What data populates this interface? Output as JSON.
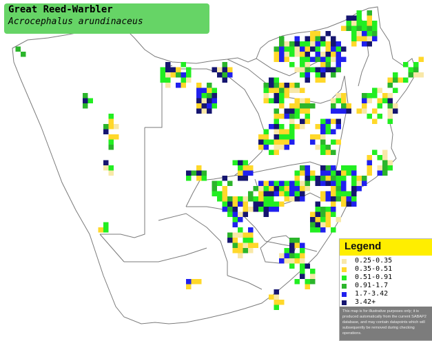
{
  "species": {
    "common_name": "Great Reed-Warbler",
    "scientific_name": "Acrocephalus arundinaceus"
  },
  "legend": {
    "title": "Legend",
    "items": [
      {
        "label": "0.25-0.35",
        "color": "#f8e8a8"
      },
      {
        "label": "0.35-0.51",
        "color": "#ffd82a"
      },
      {
        "label": "0.51-0.91",
        "color": "#22ee22"
      },
      {
        "label": "0.91-1.7",
        "color": "#2bb52b"
      },
      {
        "label": "1.7-3.42",
        "color": "#2020ee"
      },
      {
        "label": "3.42+",
        "color": "#151570"
      }
    ],
    "disclaimer": "This map is for illustrative purposes only; it is produced automatically from the current SABAP2 database, and may contain datapoints which will subsequently be removed during checking operations."
  },
  "colors": {
    "title_bg": "#66d466",
    "legend_header_bg": "#ffee00",
    "disclaimer_bg": "#7c7c7c",
    "land": "#ffffff",
    "border_line": "#7a7a7a"
  }
}
